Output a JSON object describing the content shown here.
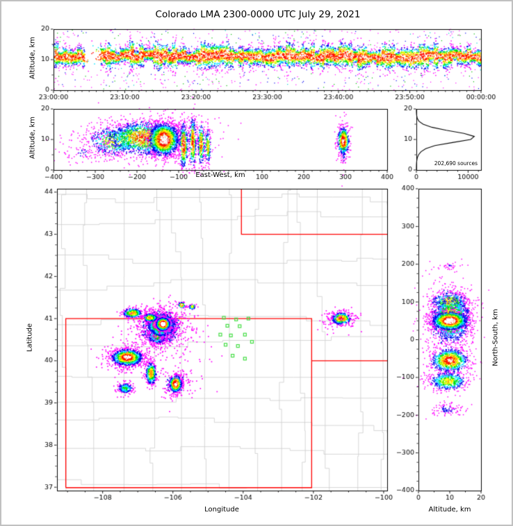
{
  "figure": {
    "title": "Colorado LMA 2300-0000 UTC July 29, 2021",
    "background": "#ffffff",
    "border_color": "#c0c0c0"
  },
  "palette": {
    "density_ramp": [
      "#ff00ff",
      "#0000ee",
      "#00e5ff",
      "#00dd00",
      "#ffff00",
      "#ff9900",
      "#ff0000",
      "#ffffff"
    ],
    "outlier_colors": [
      "#ff00ff",
      "#0000ee",
      "#00bb00",
      "#00cccc"
    ],
    "axis_color": "#000000",
    "state_border": "#ff0000",
    "county_line": "#cccccc",
    "station_color": "#44dd44",
    "histogram_line": "#000000"
  },
  "cluster_fields": [
    "cx",
    "cy",
    "sx",
    "sy",
    "n",
    "peak"
  ],
  "chart_data": [
    {
      "id": "time_height",
      "type": "scatter",
      "ylabel": "Altitude, km",
      "xlim": [
        0,
        3600
      ],
      "ylim": [
        0,
        20
      ],
      "xticks": {
        "values": [
          0,
          600,
          1200,
          1800,
          2400,
          3000,
          3600
        ],
        "labels": [
          "23:00:00",
          "23:10:00",
          "23:20:00",
          "23:30:00",
          "23:40:00",
          "23:50:00",
          "00:00:00"
        ]
      },
      "yticks": {
        "values": [
          0,
          10,
          20
        ],
        "labels": [
          "0",
          "10",
          "20"
        ]
      },
      "xminor_step": 60,
      "yminor_step": 5,
      "seed": 11,
      "band": {
        "alt_center": 11,
        "alt_sigma": 1.7,
        "n": 9000,
        "peak": 0.88,
        "gaps": [
          [
            265,
            395
          ]
        ],
        "gap_residual": 0.05,
        "col_sec": 40
      },
      "outliers": {
        "n": 750,
        "alt_range": [
          0,
          20
        ]
      }
    },
    {
      "id": "ew_altitude",
      "type": "scatter",
      "xlabel": "East-West, km",
      "ylabel": "Altitude, km",
      "xlim": [
        -400,
        400
      ],
      "ylim": [
        0,
        20
      ],
      "xticks": {
        "values": [
          -400,
          -300,
          -200,
          -100,
          0,
          100,
          200,
          300,
          400
        ],
        "labels": [
          "−400",
          "−300",
          "−200",
          "−100",
          "",
          "100",
          "200",
          "300",
          "400"
        ]
      },
      "yticks": {
        "values": [
          0,
          10,
          20
        ],
        "labels": [
          "0",
          "10",
          "20"
        ]
      },
      "xminor_step": 20,
      "yminor_step": 5,
      "seed": 22,
      "clusters": [
        [
          -330,
          6,
          28,
          2.5,
          70,
          0.15
        ],
        [
          -170,
          10,
          70,
          3.5,
          900,
          0.42
        ],
        [
          -255,
          9.5,
          32,
          2.6,
          450,
          0.62
        ],
        [
          -185,
          10.5,
          45,
          2.8,
          1300,
          0.8
        ],
        [
          -135,
          10,
          18,
          2.7,
          1600,
          1.02
        ],
        [
          -88,
          8,
          5,
          3.8,
          330,
          0.9
        ],
        [
          -66,
          9,
          4,
          4.2,
          300,
          0.85
        ],
        [
          -46,
          8.5,
          4,
          3.5,
          240,
          0.8
        ],
        [
          -30,
          7.5,
          3.5,
          3,
          160,
          0.7
        ],
        [
          295,
          8,
          4,
          4.5,
          130,
          0.25
        ],
        [
          295,
          9.5,
          7,
          2.3,
          500,
          0.95
        ]
      ]
    },
    {
      "id": "alt_histogram",
      "type": "line",
      "annotation": "202,690 sources",
      "xlim": [
        0,
        12500
      ],
      "ylim": [
        0,
        20
      ],
      "xticks": {
        "values": [
          0,
          10000
        ],
        "labels": [
          "0",
          "10000"
        ]
      },
      "yticks": {
        "values": [
          0,
          10,
          20
        ],
        "labels": [
          "0",
          "10",
          "20"
        ]
      },
      "xminor_step": 2000,
      "yminor_step": 5,
      "profile": {
        "alt": [
          0,
          1,
          2,
          3,
          4,
          5,
          6,
          7,
          8,
          9,
          10,
          11,
          12,
          13,
          14,
          15,
          16,
          17,
          18,
          19,
          20
        ],
        "count": [
          3,
          8,
          25,
          70,
          180,
          420,
          900,
          1800,
          3600,
          7000,
          10500,
          11200,
          9200,
          5800,
          3000,
          1300,
          480,
          160,
          45,
          12,
          2
        ]
      }
    },
    {
      "id": "map",
      "type": "scatter",
      "xlabel": "Longitude",
      "ylabel": "Latitude",
      "xlim": [
        -109.3,
        -99.9
      ],
      "ylim": [
        36.92,
        44.08
      ],
      "xticks": {
        "values": [
          -108,
          -106,
          -104,
          -102,
          -100
        ],
        "labels": [
          "−108",
          "−106",
          "−104",
          "−102",
          "−100"
        ]
      },
      "yticks": {
        "values": [
          37,
          38,
          39,
          40,
          41,
          42,
          43,
          44
        ],
        "labels": [
          "37",
          "38",
          "39",
          "40",
          "41",
          "42",
          "43",
          "44"
        ]
      },
      "xminor_step": 0.5,
      "yminor_step": 0.25,
      "seed": 33,
      "counties": {
        "seed": 7
      },
      "state_lines": [
        [
          [
            -109.05,
            36.99
          ],
          [
            -109.05,
            41.0
          ],
          [
            -102.05,
            41.0
          ],
          [
            -102.05,
            36.99
          ],
          [
            -109.05,
            36.99
          ]
        ],
        [
          [
            -104.05,
            44.08
          ],
          [
            -104.05,
            43.0
          ],
          [
            -99.9,
            43.0
          ]
        ],
        [
          [
            -102.05,
            40.0
          ],
          [
            -99.9,
            40.0
          ]
        ]
      ],
      "stations": [
        [
          -104.55,
          41.02
        ],
        [
          -104.2,
          40.98
        ],
        [
          -103.85,
          41.0
        ],
        [
          -104.45,
          40.83
        ],
        [
          -104.1,
          40.82
        ],
        [
          -104.65,
          40.62
        ],
        [
          -104.35,
          40.6
        ],
        [
          -103.95,
          40.62
        ],
        [
          -104.5,
          40.38
        ],
        [
          -104.15,
          40.35
        ],
        [
          -103.75,
          40.45
        ],
        [
          -104.3,
          40.12
        ],
        [
          -103.95,
          40.05
        ]
      ],
      "clusters": [
        [
          -106.35,
          40.8,
          0.38,
          0.26,
          700,
          0.4
        ],
        [
          -106.45,
          40.58,
          0.16,
          0.1,
          260,
          0.5
        ],
        [
          -106.33,
          40.85,
          0.2,
          0.14,
          1300,
          0.85
        ],
        [
          -106.28,
          40.87,
          0.095,
          0.075,
          1500,
          1.03
        ],
        [
          -106.65,
          41.02,
          0.11,
          0.05,
          220,
          0.65
        ],
        [
          -107.15,
          41.13,
          0.14,
          0.06,
          260,
          0.72
        ],
        [
          -107.3,
          40.05,
          0.35,
          0.17,
          250,
          0.3
        ],
        [
          -107.3,
          40.08,
          0.22,
          0.1,
          850,
          0.92
        ],
        [
          -106.62,
          39.7,
          0.08,
          0.14,
          320,
          0.72
        ],
        [
          -105.92,
          39.45,
          0.2,
          0.18,
          130,
          0.3
        ],
        [
          -105.92,
          39.45,
          0.09,
          0.1,
          430,
          0.97
        ],
        [
          -107.35,
          39.35,
          0.12,
          0.07,
          170,
          0.45
        ],
        [
          -101.2,
          41.0,
          0.26,
          0.13,
          90,
          0.25
        ],
        [
          -101.2,
          41.0,
          0.14,
          0.07,
          290,
          0.85
        ],
        [
          -105.75,
          41.32,
          0.05,
          0.035,
          70,
          0.85
        ],
        [
          -105.45,
          41.28,
          0.045,
          0.03,
          45,
          0.7
        ],
        [
          -106.2,
          40.3,
          0.8,
          0.45,
          70,
          0.1
        ],
        [
          -105.6,
          39.6,
          0.45,
          0.3,
          30,
          0.1
        ],
        [
          -101.3,
          40.95,
          0.3,
          0.18,
          25,
          0.1
        ]
      ]
    },
    {
      "id": "ns_altitude",
      "type": "scatter",
      "xlabel": "Altitude, km",
      "ylabel": "North-South, km",
      "xlim": [
        0,
        20
      ],
      "ylim": [
        -400,
        400
      ],
      "xticks": {
        "values": [
          0,
          10,
          20
        ],
        "labels": [
          "0",
          "10",
          "20"
        ]
      },
      "yticks": {
        "values": [
          -400,
          -300,
          -200,
          -100,
          0,
          100,
          200,
          300,
          400
        ],
        "labels": [
          "−400",
          "−300",
          "−200",
          "−100",
          "0",
          "100",
          "200",
          "300",
          "400"
        ]
      },
      "xminor_step": 5,
      "yminor_step": 25,
      "seed": 44,
      "clusters": [
        [
          10,
          55,
          4.5,
          55,
          500,
          0.35
        ],
        [
          10,
          100,
          3,
          13,
          420,
          0.7
        ],
        [
          10.5,
          55,
          3.2,
          30,
          1200,
          0.8
        ],
        [
          10,
          50,
          2.8,
          12,
          1400,
          1.02
        ],
        [
          10,
          -55,
          3,
          16,
          900,
          0.88
        ],
        [
          9.5,
          -110,
          3.2,
          13,
          520,
          0.62
        ],
        [
          9,
          -185,
          3,
          10,
          110,
          0.18
        ],
        [
          10,
          195,
          2,
          5,
          30,
          0.15
        ]
      ]
    }
  ]
}
